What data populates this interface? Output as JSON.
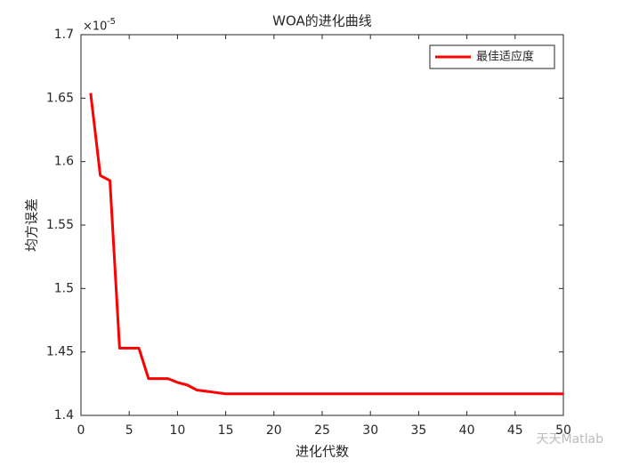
{
  "chart_data": {
    "type": "line",
    "title": "WOA的进化曲线",
    "xlabel": "进化代数",
    "ylabel": "均方误差",
    "y_multiplier": {
      "base": "×10",
      "power": "-5"
    },
    "x": [
      1,
      2,
      3,
      4,
      5,
      6,
      7,
      8,
      9,
      10,
      11,
      12,
      13,
      14,
      15,
      16,
      17,
      18,
      19,
      20,
      21,
      22,
      23,
      24,
      25,
      26,
      27,
      28,
      29,
      30,
      31,
      32,
      33,
      34,
      35,
      36,
      37,
      38,
      39,
      40,
      41,
      42,
      43,
      44,
      45,
      46,
      47,
      48,
      49,
      50
    ],
    "series": [
      {
        "name": "最佳适应度",
        "color": "#ff0000",
        "values": [
          1.654,
          1.589,
          1.585,
          1.453,
          1.453,
          1.453,
          1.429,
          1.429,
          1.429,
          1.426,
          1.424,
          1.42,
          1.419,
          1.418,
          1.417,
          1.417,
          1.417,
          1.417,
          1.417,
          1.417,
          1.417,
          1.417,
          1.417,
          1.417,
          1.417,
          1.417,
          1.417,
          1.417,
          1.417,
          1.417,
          1.417,
          1.417,
          1.417,
          1.417,
          1.417,
          1.417,
          1.417,
          1.417,
          1.417,
          1.417,
          1.417,
          1.417,
          1.417,
          1.417,
          1.417,
          1.417,
          1.417,
          1.417,
          1.417,
          1.417
        ]
      }
    ],
    "xlim": [
      0,
      50
    ],
    "xticks": [
      0,
      5,
      10,
      15,
      20,
      25,
      30,
      35,
      40,
      45,
      50
    ],
    "ylim": [
      1.4,
      1.7
    ],
    "yticks": [
      1.4,
      1.45,
      1.5,
      1.55,
      1.6,
      1.65,
      1.7
    ],
    "legend": "top-right",
    "grid": false,
    "watermark": "天天Matlab"
  }
}
